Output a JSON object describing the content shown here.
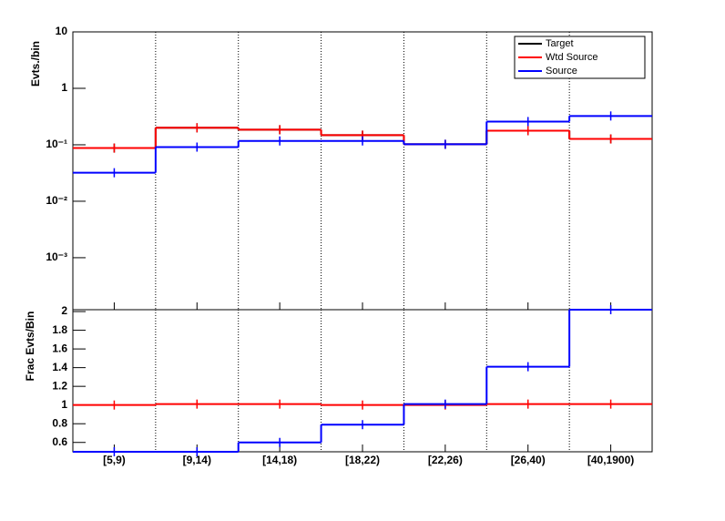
{
  "chart_data": [
    {
      "type": "step",
      "log_y": true,
      "ylabel": "Evts./bin",
      "ylim": [
        0.00012,
        10
      ],
      "yticks": [
        {
          "value": 10,
          "label": "10"
        },
        {
          "value": 1,
          "label": "1"
        },
        {
          "value": 0.1,
          "label": "10⁻¹"
        },
        {
          "value": 0.01,
          "label": "10⁻²"
        },
        {
          "value": 0.001,
          "label": "10⁻³"
        }
      ],
      "x_grid": true,
      "legend": "top-right",
      "series": [
        {
          "name": "Target",
          "color": "#000000",
          "values": [
            0.0875,
            0.2,
            0.185,
            0.148,
            0.102,
            0.178,
            0.127
          ]
        },
        {
          "name": "Wtd Source",
          "color": "#ff0000",
          "values": [
            0.0875,
            0.2,
            0.185,
            0.148,
            0.102,
            0.178,
            0.127
          ]
        },
        {
          "name": "Source",
          "color": "#0000ff",
          "values": [
            0.032,
            0.091,
            0.117,
            0.117,
            0.102,
            0.258,
            0.324
          ]
        }
      ]
    },
    {
      "type": "step",
      "ylabel": "Frac Evts/Bin",
      "categories": [
        "[5,9)",
        "[9,14)",
        "[14,18)",
        "[18,22)",
        "[22,26)",
        "[26,40)",
        "[40,1900)"
      ],
      "ylim": [
        0.5,
        2.02
      ],
      "yticks": [
        0.6,
        0.8,
        1,
        1.2,
        1.4,
        1.6,
        1.8,
        2
      ],
      "x_grid": true,
      "series": [
        {
          "color": "#ff0000",
          "values": [
            1,
            1.01,
            1.01,
            1,
            1,
            1.01,
            1.01
          ]
        },
        {
          "color": "#0000ff",
          "values": [
            0.5,
            0.5,
            0.6,
            0.79,
            1.01,
            1.41,
            2.02
          ]
        }
      ]
    }
  ]
}
